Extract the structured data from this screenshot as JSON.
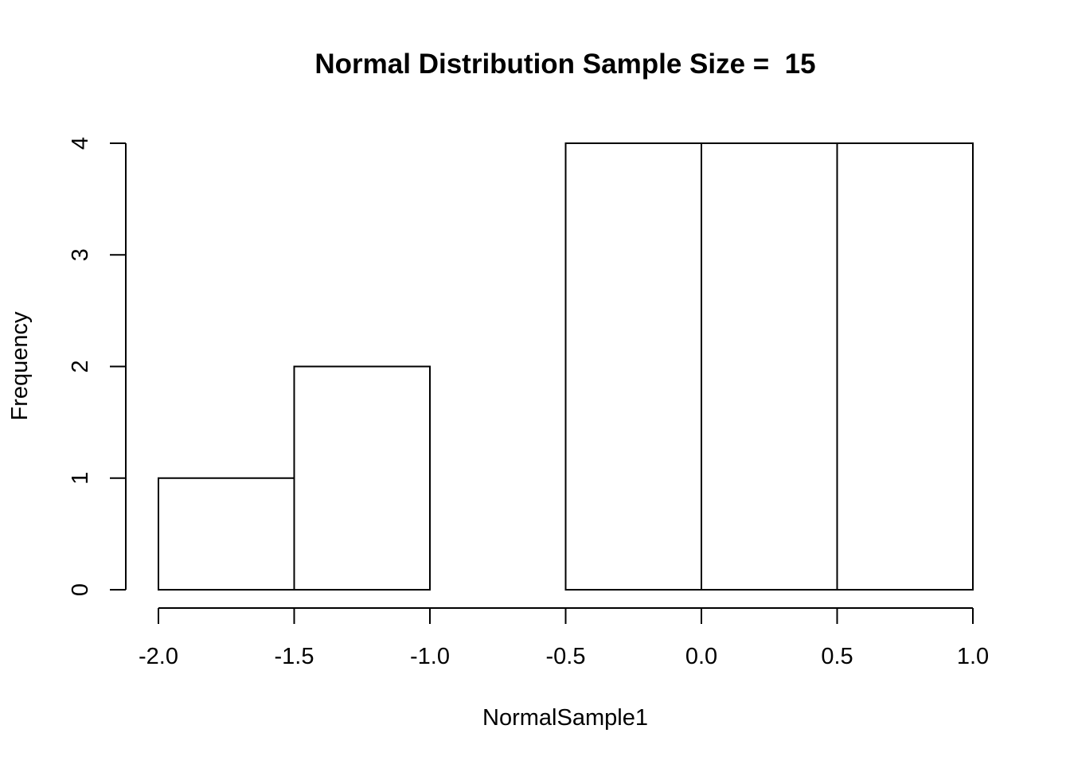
{
  "chart_data": {
    "type": "bar",
    "subtype": "histogram",
    "title": "Normal Distribution Sample Size =  15",
    "xlabel": "NormalSample1",
    "ylabel": "Frequency",
    "bin_edges": [
      -2.0,
      -1.5,
      -1.0,
      -0.5,
      0.0,
      0.5,
      1.0
    ],
    "values": [
      1,
      2,
      0,
      4,
      4,
      4
    ],
    "xlim": [
      -2.0,
      1.0
    ],
    "ylim": [
      0,
      4
    ],
    "x_ticks": [
      -2.0,
      -1.5,
      -1.0,
      -0.5,
      0.0,
      0.5,
      1.0
    ],
    "x_tick_labels": [
      "-2.0",
      "-1.5",
      "-1.0",
      "-0.5",
      "0.0",
      "0.5",
      "1.0"
    ],
    "y_ticks": [
      0,
      1,
      2,
      3,
      4
    ],
    "y_tick_labels": [
      "0",
      "1",
      "2",
      "3",
      "4"
    ],
    "grid": false,
    "legend": "none",
    "colors": {
      "bar_fill": "#ffffff",
      "bar_stroke": "#000000",
      "background": "#ffffff"
    }
  }
}
